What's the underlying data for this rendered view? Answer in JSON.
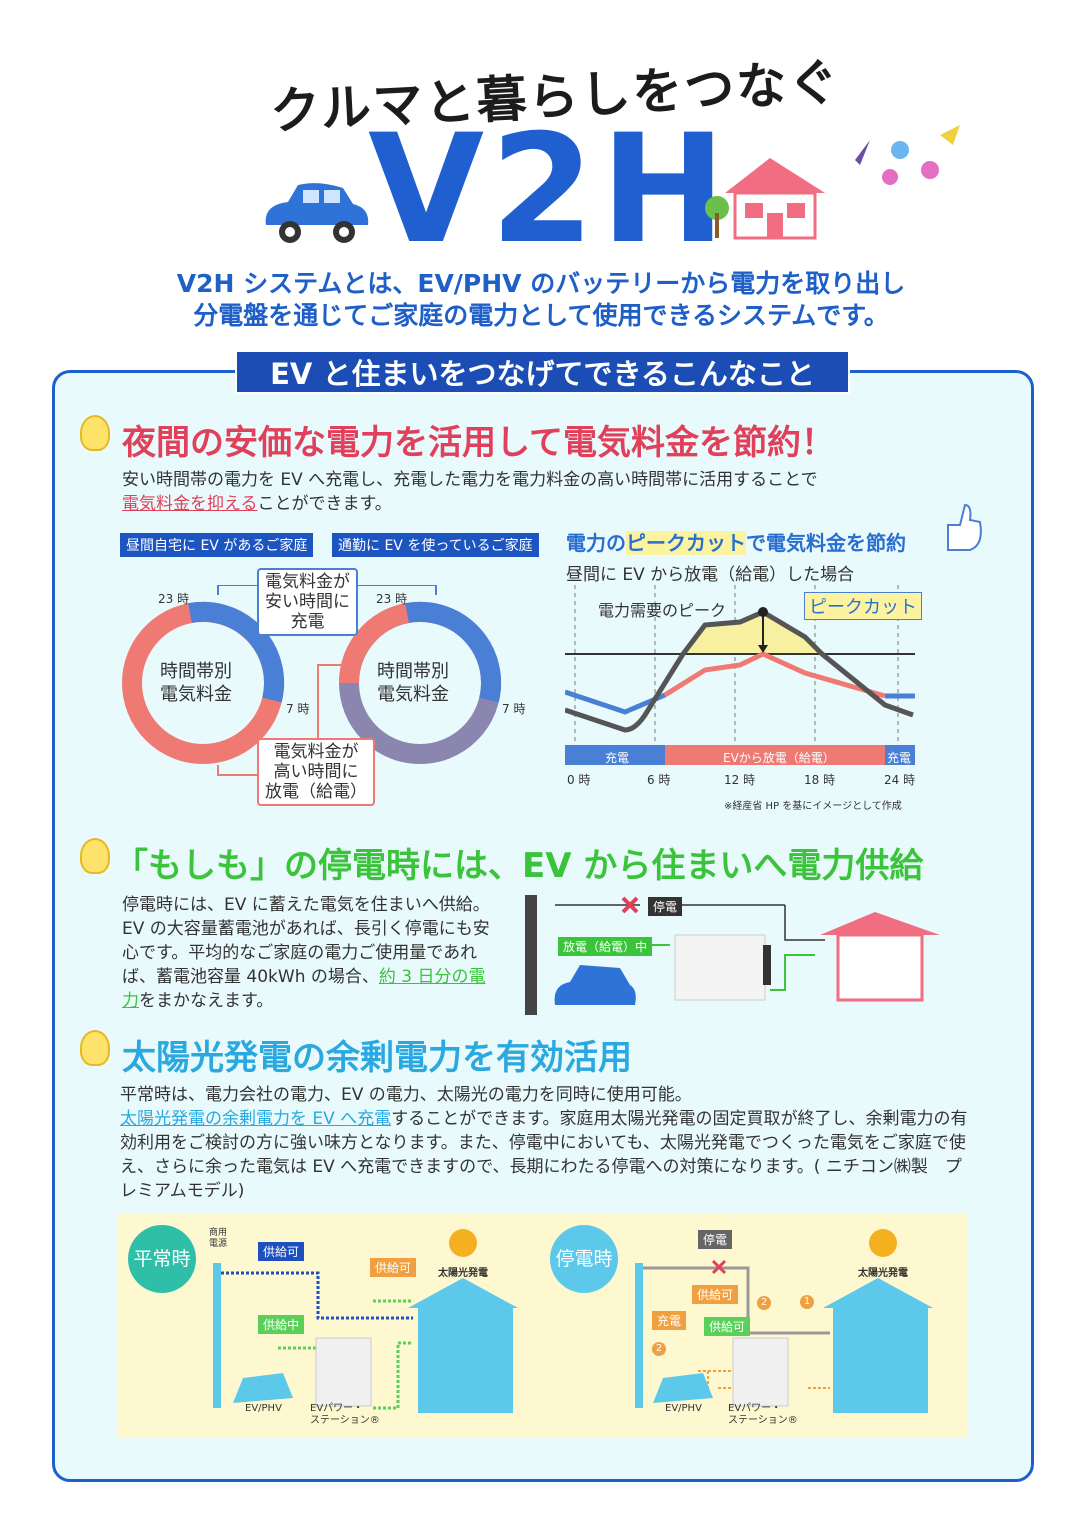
{
  "header": {
    "tagline": "クルマと暮らしをつなぐ",
    "title": "V2H",
    "subtitle_1": "V2H システムとは、EV/PHV のバッテリーから電力を取り出し",
    "subtitle_2": "分電盤を通じてご家庭の電力として使用できるシステムです。"
  },
  "band": "EV と住まいをつなげてできるこんなこと",
  "section1": {
    "heading": "夜間の安価な電力を活用して電気料金を節約！",
    "body_1": "安い時間帯の電力を EV へ充電し、充電した電力を電力料金の高い時間帯に活用することで",
    "body_link": "電気料金を抑える",
    "body_2": "ことができます。",
    "badge_left": "昼間自宅に EV があるご家庭",
    "badge_right": "通勤に EV を使っているご家庭",
    "ring_center": "時間帯別\n電気料金",
    "ring_23": "23 時",
    "ring_7": "7 時",
    "box_cheap": "電気料金が\n安い時間に\n充電",
    "box_high": "電気料金が\n高い時間に\n放電（給電）",
    "chart_title_a": "電力の",
    "chart_title_hl": "ピークカット",
    "chart_title_b": "で電気料金を節約",
    "chart_subtitle": "昼間に EV から放電（給電）した場合",
    "peak_label": "電力需要のピーク",
    "peakcut_label": "ピークカット",
    "bar_charge": "充電",
    "bar_discharge": "EVから放電（給電）",
    "bar_charge2": "充電",
    "x_ticks": [
      "0 時",
      "6 時",
      "12 時",
      "18 時",
      "24 時"
    ],
    "note": "※経産省 HP を基にイメージとして作成"
  },
  "section2": {
    "heading": "「もしも」の停電時には、EV から住まいへ電力供給",
    "body": "停電時には、EV に蓄えた電気を住まいへ供給。EV の大容量蓄電池があれば、長引く停電にも安心です。平均的なご家庭の電力ご使用量であれば、蓄電池容量 40kWh の場合、",
    "body_link": "約 3 日分の電力",
    "body_2": "をまかなえます。",
    "outage_label": "停電",
    "discharge_label": "放電（給電）中"
  },
  "section3": {
    "heading": "太陽光発電の余剰電力を有効活用",
    "body_1": "平常時は、電力会社の電力、EV の電力、太陽光の電力を同時に使用可能。",
    "body_link": "太陽光発電の余剰電力を EV へ充電",
    "body_2": "することができます。家庭用太陽光発電の固定買取が終了し、余剰電力の有効利用をご検討の方に強い味方となります。また、停電中においても、太陽光発電でつくった電気をご家庭で使え、さらに余った電気は EV へ充電できますので、長期にわたる停電への対策になります。( ニチコン㈱製　プレミアムモデル)",
    "normal": {
      "badge": "平常時",
      "grid": "商用\n電源",
      "supply_ok": "供給可",
      "supplying": "供給中",
      "solar_ok": "供給可",
      "solar": "太陽光発電",
      "ev": "EV/PHV",
      "station": "EVパワー・\nステーション®"
    },
    "outage": {
      "badge": "停電時",
      "outage": "停電",
      "solar_ok": "供給可",
      "charge": "充電",
      "ev_ok": "供給可",
      "solar": "太陽光発電",
      "ev": "EV/PHV",
      "station": "EVパワー・\nステーション®",
      "step1": "1",
      "step2": "2"
    }
  },
  "colors": {
    "blue": "#1f5fd0",
    "red": "#e0405a",
    "green": "#3bc43b",
    "cyan": "#2aa8e0"
  }
}
